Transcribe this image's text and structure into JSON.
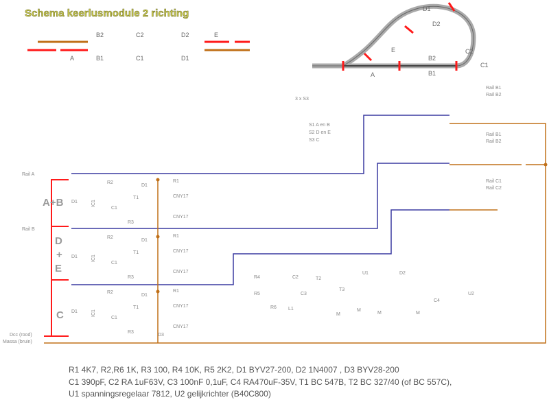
{
  "title": "Schema keerlusmodule 2 richting",
  "colors": {
    "red": "#ff1a1a",
    "orange": "#c07018",
    "blue": "#3a3aa0",
    "track": "#aaaaaa",
    "gray": "#777777"
  },
  "track_legend": {
    "B2": "B2",
    "C2": "C2",
    "D2": "D2",
    "E": "E",
    "A": "A",
    "B1": "B1",
    "C1": "C1",
    "D1": "D1"
  },
  "loop_labels": {
    "D1": "D1",
    "D2": "D2",
    "E": "E",
    "A": "A",
    "B2": "B2",
    "B1": "B1",
    "C2": "C2",
    "C1": "C1"
  },
  "rail_top": {
    "b1": "Rail B1",
    "b2": "Rail B2"
  },
  "rail_pairs": [
    {
      "l1": "Rail B1",
      "l2": "Rail B2"
    },
    {
      "l1": "Rail C1",
      "l2": "Rail C2"
    }
  ],
  "relay_label": "3 x S3",
  "relay_items": [
    "S1 A en B",
    "S2 D en E",
    "S3 C"
  ],
  "rails": {
    "a": "Rail A",
    "b": "Rail B",
    "dcc": "Dcc (rood)",
    "massa": "Massa (bruin)"
  },
  "groups": [
    {
      "line1": "A+B",
      "line2": ""
    },
    {
      "line1": "D",
      "plus": "+",
      "line2": "E"
    },
    {
      "line1": "C",
      "line2": ""
    }
  ],
  "module": {
    "r1": "R1",
    "r2": "R2",
    "r3": "R3",
    "c1": "C1",
    "t1": "T1",
    "d1": "D1",
    "ic": "IC1",
    "opto": "CNY17",
    "diode": "D3"
  },
  "right_comp": {
    "r4": "R4",
    "r5": "R5",
    "c2": "C2",
    "c3": "C3",
    "c4": "C4",
    "u1": "U1",
    "u2": "U2",
    "t2": "T2",
    "t3": "T3",
    "d2": "D2",
    "r6": "R6",
    "l1": "L1",
    "m": "M"
  },
  "parts_list": [
    "R1 4K7, R2,R6 1K, R3 100, R4 10K, R5 2K2, D1 BYV27-200, D2 1N4007 , D3 BYV28-200",
    "C1 390pF, C2 RA 1uF63V, C3 100nF 0,1uF, C4 RA470uF-35V, T1 BC 547B, T2 BC 327/40 (of BC 557C),",
    "U1 spanningsregelaar 7812, U2 gelijkrichter (B40C800)"
  ]
}
